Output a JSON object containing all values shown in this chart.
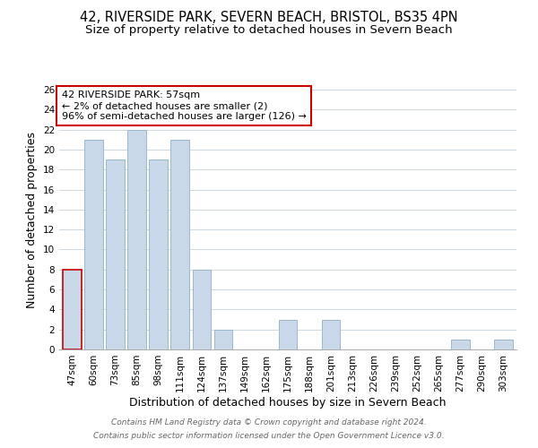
{
  "title": "42, RIVERSIDE PARK, SEVERN BEACH, BRISTOL, BS35 4PN",
  "subtitle": "Size of property relative to detached houses in Severn Beach",
  "xlabel": "Distribution of detached houses by size in Severn Beach",
  "ylabel": "Number of detached properties",
  "bar_labels": [
    "47sqm",
    "60sqm",
    "73sqm",
    "85sqm",
    "98sqm",
    "111sqm",
    "124sqm",
    "137sqm",
    "149sqm",
    "162sqm",
    "175sqm",
    "188sqm",
    "201sqm",
    "213sqm",
    "226sqm",
    "239sqm",
    "252sqm",
    "265sqm",
    "277sqm",
    "290sqm",
    "303sqm"
  ],
  "bar_values": [
    8,
    21,
    19,
    22,
    19,
    21,
    8,
    2,
    0,
    0,
    3,
    0,
    3,
    0,
    0,
    0,
    0,
    0,
    1,
    0,
    1
  ],
  "bar_color": "#c8d8e8",
  "highlight_bar_index": 0,
  "highlight_edge_color": "#cc0000",
  "normal_edge_color": "#9ab8cc",
  "ylim": [
    0,
    26
  ],
  "yticks": [
    0,
    2,
    4,
    6,
    8,
    10,
    12,
    14,
    16,
    18,
    20,
    22,
    24,
    26
  ],
  "annotation_box_text": "42 RIVERSIDE PARK: 57sqm\n← 2% of detached houses are smaller (2)\n96% of semi-detached houses are larger (126) →",
  "annotation_box_edge_color": "#cc0000",
  "annotation_box_face_color": "#ffffff",
  "footer_line1": "Contains HM Land Registry data © Crown copyright and database right 2024.",
  "footer_line2": "Contains public sector information licensed under the Open Government Licence v3.0.",
  "background_color": "#ffffff",
  "grid_color": "#d0d8e0",
  "title_fontsize": 10.5,
  "subtitle_fontsize": 9.5,
  "axis_label_fontsize": 9,
  "tick_fontsize": 7.5,
  "annotation_fontsize": 8,
  "footer_fontsize": 6.5
}
